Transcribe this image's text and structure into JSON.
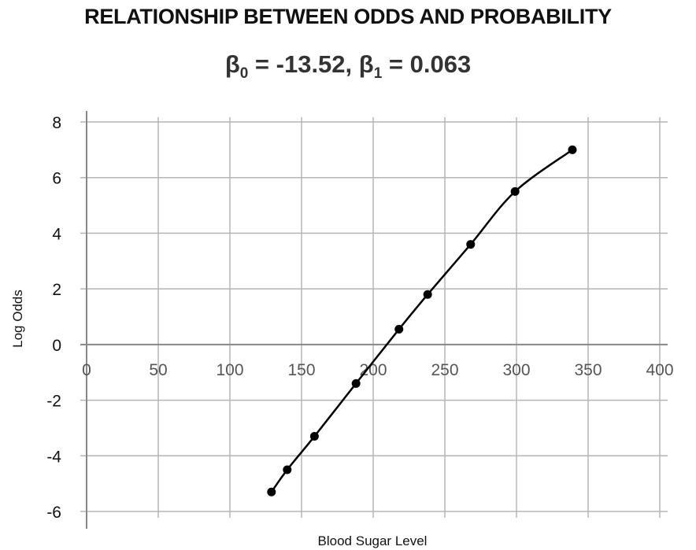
{
  "title": "RELATIONSHIP BETWEEN ODDS AND PROBABILITY",
  "subtitle": {
    "beta0_symbol": "β",
    "beta0_sub": "0",
    "beta0_value": " = -13.52, ",
    "beta1_symbol": "β",
    "beta1_sub": "1",
    "beta1_value": " = 0.063"
  },
  "chart_data": {
    "type": "line",
    "xlabel": "Blood Sugar Level",
    "ylabel": "Log Odds",
    "xlim": [
      0,
      400
    ],
    "ylim": [
      -6,
      8
    ],
    "x_ticks": [
      0,
      50,
      100,
      150,
      200,
      250,
      300,
      350,
      400
    ],
    "y_ticks": [
      8,
      6,
      4,
      2,
      0,
      -2,
      -4,
      -6
    ],
    "grid": true,
    "smooth": true,
    "marker": "circle",
    "colors": {
      "line": "#000000",
      "grid": "#b5b5b5",
      "axis": "#888888"
    },
    "series": [
      {
        "x": [
          129,
          140,
          159,
          188,
          218,
          238,
          268,
          299,
          339
        ],
        "y": [
          -5.3,
          -4.5,
          -3.3,
          -1.4,
          0.55,
          1.8,
          3.6,
          5.5,
          7.0
        ]
      }
    ]
  }
}
